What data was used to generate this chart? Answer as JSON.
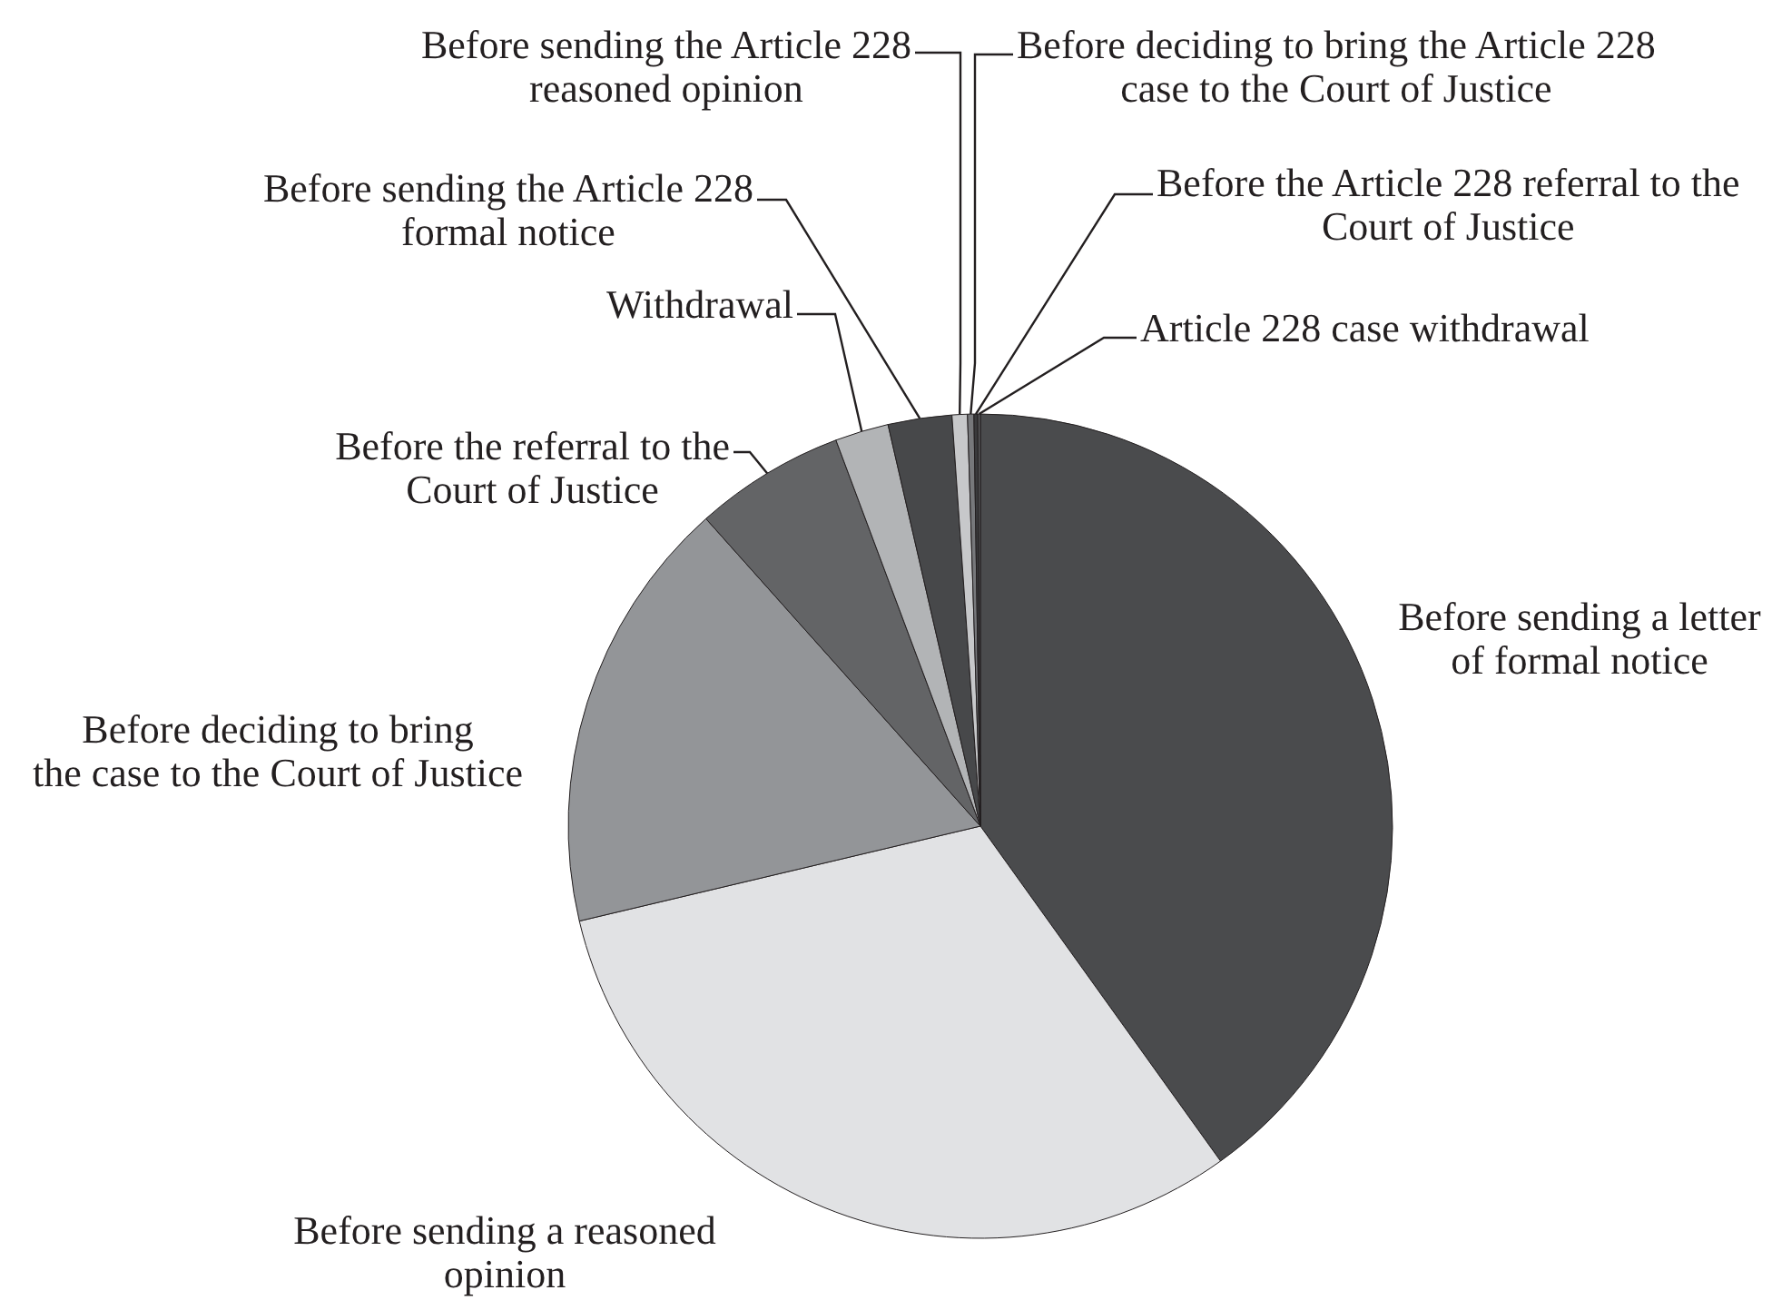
{
  "chart_data": {
    "type": "pie",
    "categories": [
      "Before sending a letter of formal notice",
      "Before sending a reasoned opinion",
      "Before deciding to bring the case to the Court of Justice",
      "Before the referral to the Court of Justice",
      "Withdrawal",
      "Before sending the Article 228 formal notice",
      "Before sending the Article 228 reasoned opinion",
      "Before deciding to bring the Article 228 case to the Court of Justice",
      "Before the Article 228 referral to the Court of Justice",
      "Article 228 case withdrawal"
    ],
    "values": [
      40.1,
      31.2,
      17.1,
      5.9,
      2.1,
      2.5,
      0.6,
      0.25,
      0.15,
      0.1
    ],
    "colors": [
      "#4a4b4d",
      "#e1e2e4",
      "#939598",
      "#636466",
      "#b2b4b6",
      "#47484a",
      "#c7c8ca",
      "#77787b",
      "#3a3a3c",
      "#58595b"
    ],
    "legend": false
  }
}
